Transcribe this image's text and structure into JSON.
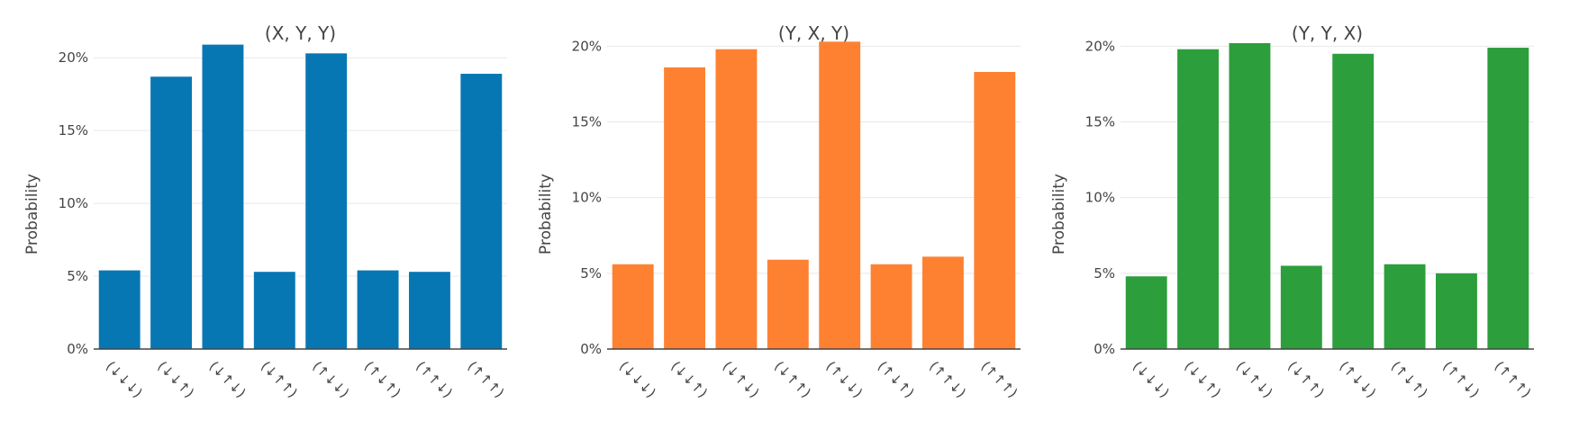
{
  "chart_data": [
    {
      "type": "bar",
      "title": "(X, Y, Y)",
      "ylabel": "Probability",
      "xlabel": "",
      "ylim": [
        0,
        21
      ],
      "yticks": [
        "0%",
        "5%",
        "10%",
        "15%",
        "20%"
      ],
      "categories": [
        "(↓↓↓)",
        "(↓↓↑)",
        "(↓↑↓)",
        "(↓↑↑)",
        "(↑↓↓)",
        "(↑↓↑)",
        "(↑↑↓)",
        "(↑↑↑)"
      ],
      "values": [
        5.4,
        18.7,
        20.9,
        5.3,
        20.3,
        5.4,
        5.3,
        18.9
      ],
      "color": "#0777b3",
      "grid": true
    },
    {
      "type": "bar",
      "title": "(Y, X, Y)",
      "ylabel": "Probability",
      "xlabel": "",
      "ylim": [
        0,
        20.2
      ],
      "yticks": [
        "0%",
        "5%",
        "10%",
        "15%",
        "20%"
      ],
      "categories": [
        "(↓↓↓)",
        "(↓↓↑)",
        "(↓↑↓)",
        "(↓↑↑)",
        "(↑↓↓)",
        "(↑↓↑)",
        "(↑↑↓)",
        "(↑↑↑)"
      ],
      "values": [
        5.6,
        18.6,
        19.8,
        5.9,
        20.3,
        5.6,
        6.1,
        18.3
      ],
      "color": "#fe8132",
      "grid": true
    },
    {
      "type": "bar",
      "title": "(Y, Y, X)",
      "ylabel": "Probability",
      "xlabel": "",
      "ylim": [
        0,
        20.2
      ],
      "yticks": [
        "0%",
        "5%",
        "10%",
        "15%",
        "20%"
      ],
      "categories": [
        "(↓↓↓)",
        "(↓↓↑)",
        "(↓↑↓)",
        "(↓↑↑)",
        "(↑↓↓)",
        "(↑↓↑)",
        "(↑↑↓)",
        "(↑↑↑)"
      ],
      "values": [
        4.8,
        19.8,
        20.2,
        5.5,
        19.5,
        5.6,
        5.0,
        19.9
      ],
      "color": "#2c9e3b",
      "grid": true
    }
  ]
}
